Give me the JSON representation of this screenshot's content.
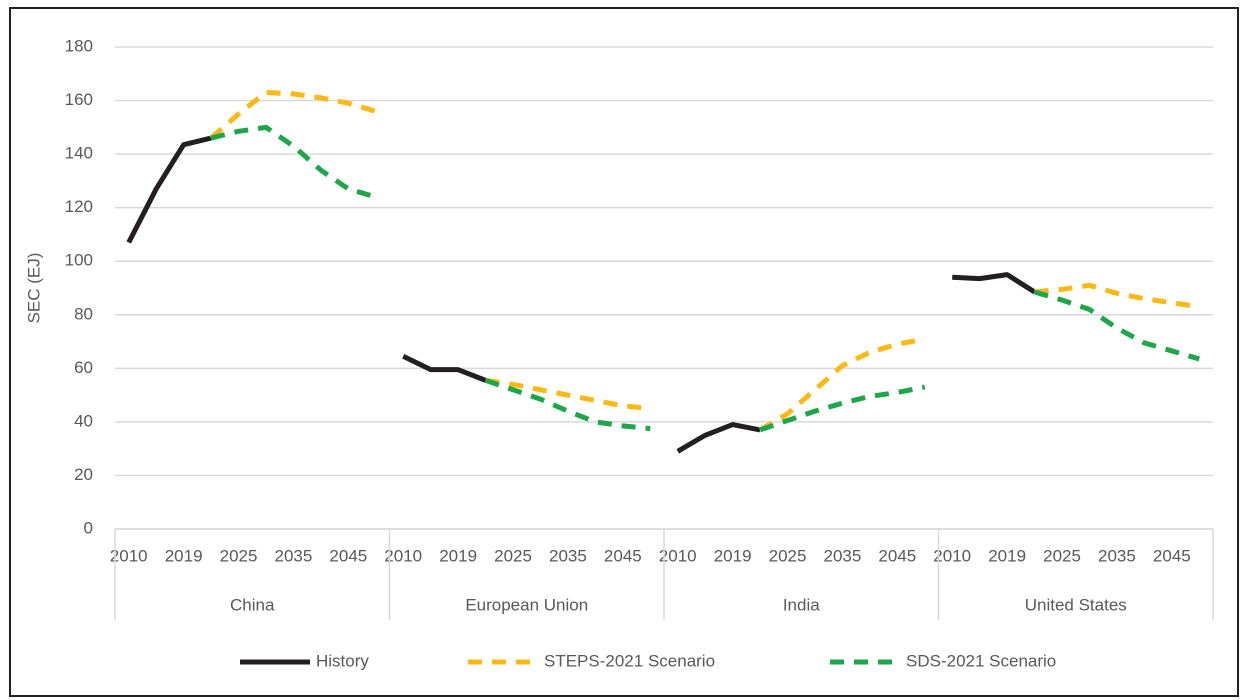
{
  "chart_data": {
    "type": "line",
    "y_label": "SEC (EJ)",
    "groups": [
      "China",
      "European Union",
      "India",
      "United States"
    ],
    "categories": [
      "2010",
      null,
      "2019",
      null,
      "2025",
      null,
      "2035",
      null,
      "2045",
      null,
      "2010",
      null,
      "2019",
      null,
      "2025",
      null,
      "2035",
      null,
      "2045",
      null,
      "2010",
      null,
      "2019",
      null,
      "2025",
      null,
      "2035",
      null,
      "2045",
      null,
      "2010",
      null,
      "2019",
      null,
      "2025",
      null,
      "2035",
      null,
      "2045",
      null
    ],
    "series": [
      {
        "name": "History",
        "color": "#231f20",
        "dashed": false,
        "values": [
          107,
          127,
          143.5,
          146,
          null,
          null,
          null,
          null,
          null,
          null,
          64.5,
          59.5,
          59.5,
          55.5,
          null,
          null,
          null,
          null,
          null,
          null,
          29,
          35,
          39,
          37,
          null,
          null,
          null,
          null,
          null,
          null,
          94,
          93.5,
          95,
          88.5,
          null,
          null,
          null,
          null,
          null,
          null
        ]
      },
      {
        "name": "STEPS-2021 Scenario",
        "color": "#fdb813",
        "dashed": true,
        "values": [
          null,
          null,
          null,
          146,
          155,
          163,
          162.5,
          161,
          159,
          156,
          null,
          null,
          null,
          55.5,
          54,
          52,
          50,
          48,
          46,
          45,
          null,
          null,
          null,
          37,
          43,
          52,
          61,
          66,
          69,
          71,
          null,
          null,
          null,
          88.5,
          89.5,
          91,
          88,
          86,
          84.5,
          83
        ]
      },
      {
        "name": "SDS-2021 Scenario",
        "color": "#1ea64a",
        "dashed": true,
        "values": [
          null,
          null,
          null,
          146,
          148.5,
          150,
          143,
          134,
          127,
          124,
          null,
          null,
          null,
          55.5,
          52,
          48.5,
          44,
          40,
          38.5,
          37.5,
          null,
          null,
          null,
          37,
          40.5,
          44,
          47,
          49.5,
          51,
          53,
          null,
          null,
          null,
          88.5,
          85.5,
          82,
          75,
          69.5,
          66.5,
          63.5
        ]
      }
    ],
    "ylim": [
      0,
      180
    ],
    "yticks": [
      0,
      20,
      40,
      60,
      80,
      100,
      120,
      140,
      160,
      180
    ],
    "grid": true,
    "legend": "bottom"
  }
}
